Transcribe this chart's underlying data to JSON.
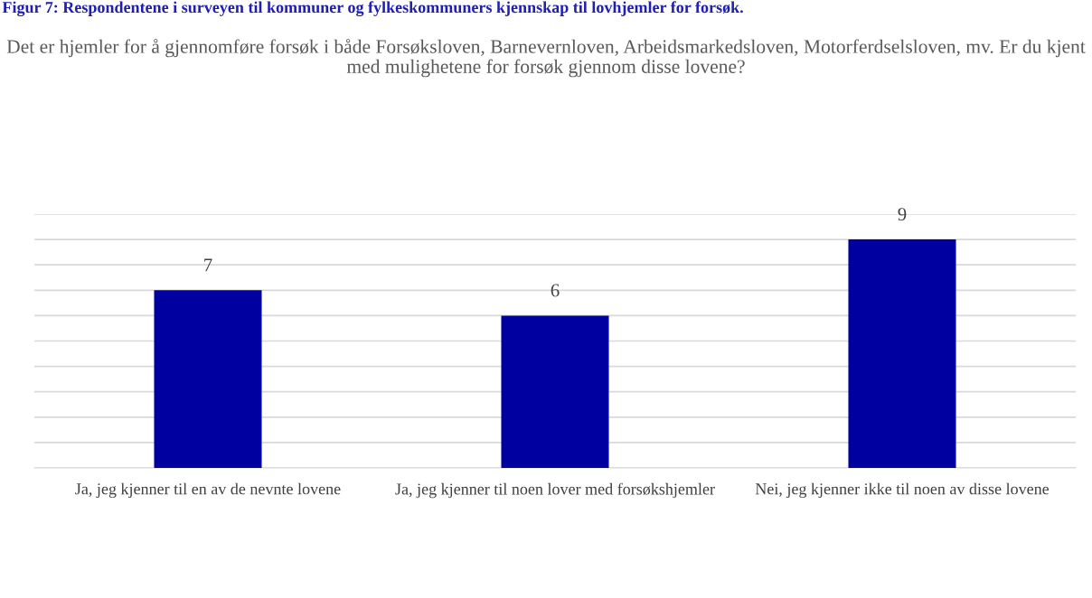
{
  "chart_data": {
    "type": "bar",
    "title": "Figur 7: Respondentene i surveyen til kommuner og fylkeskommuners kjennskap til lovhjemler for forsøk.",
    "subtitle": "Det er hjemler for å gjennomføre forsøk i både Forsøksloven, Barnevernloven, Arbeidsmarkedsloven, Motorferdselsloven, mv. Er du kjent med mulighetene for forsøk gjennom disse lovene?",
    "categories": [
      "Ja, jeg kjenner til en av de nevnte lovene",
      "Ja, jeg kjenner til noen lover med forsøkshjemler",
      "Nei, jeg kjenner ikke til noen av disse lovene"
    ],
    "values": [
      7,
      6,
      9
    ],
    "color": "#0000a0",
    "ylim": [
      0,
      10
    ],
    "yticks": [
      {
        "value": 0,
        "label": null
      },
      {
        "value": 1,
        "label": null
      },
      {
        "value": 2,
        "label": null
      },
      {
        "value": 3,
        "label": null
      },
      {
        "value": 4,
        "label": null
      },
      {
        "value": 5,
        "label": null
      },
      {
        "value": 6,
        "label": null
      },
      {
        "value": 7,
        "label": null
      },
      {
        "value": 8,
        "label": null
      },
      {
        "value": 9,
        "label": null
      },
      {
        "value": 10,
        "label": null
      }
    ],
    "grid": "y",
    "tick_labels": "x",
    "data_labels": true
  }
}
